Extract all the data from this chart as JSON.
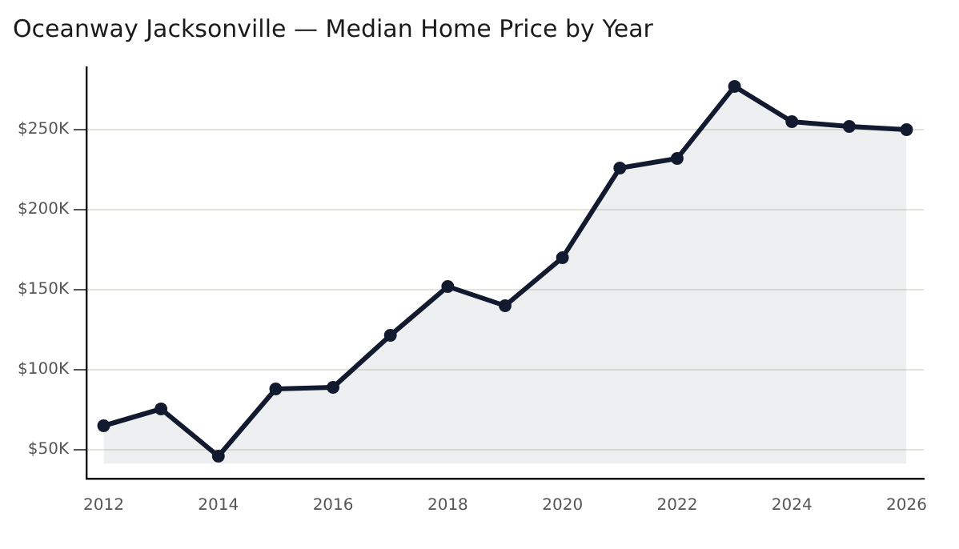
{
  "chart_data": {
    "type": "area",
    "title": "Oceanway Jacksonville — Median Home Price by Year",
    "x": [
      2012,
      2013,
      2014,
      2015,
      2016,
      2017,
      2018,
      2019,
      2020,
      2021,
      2022,
      2023,
      2024,
      2025,
      2026
    ],
    "series": [
      {
        "color": "#111a2e",
        "values": [
          65,
          75.5,
          46,
          88,
          89,
          121.5,
          152,
          140,
          170,
          226,
          232,
          277,
          255,
          252,
          250
        ]
      }
    ],
    "xlim": [
      2011.7,
      2026.3
    ],
    "xticks": [
      2012,
      2014,
      2016,
      2018,
      2020,
      2022,
      2024,
      2026
    ],
    "ylim": [
      32,
      289
    ],
    "yticks": [
      {
        "value": 50,
        "label": "$50K"
      },
      {
        "value": 100,
        "label": "$100K"
      },
      {
        "value": 150,
        "label": "$150K"
      },
      {
        "value": 200,
        "label": "$200K"
      },
      {
        "value": 250,
        "label": "$250K"
      }
    ],
    "grid": "y",
    "legend": false,
    "marker": "circle",
    "line_style": "solid"
  }
}
